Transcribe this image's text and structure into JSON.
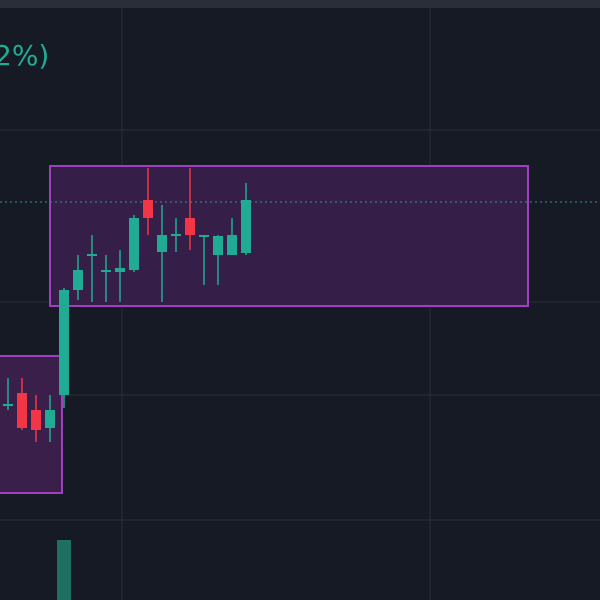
{
  "chart_data": {
    "type": "candlestick",
    "title": "2%)",
    "categories": [
      null,
      null,
      null,
      null,
      null,
      null,
      null,
      null,
      null,
      null,
      null,
      null,
      null,
      null,
      null,
      null,
      null,
      null
    ],
    "open": [
      194,
      207,
      190,
      172,
      205,
      310,
      344,
      328,
      328,
      330,
      400,
      348,
      364,
      382,
      363,
      345,
      345,
      347
    ],
    "high": [
      222,
      222,
      205,
      205,
      312,
      345,
      365,
      345,
      350,
      385,
      432,
      395,
      382,
      432,
      365,
      365,
      382,
      417
    ],
    "low": [
      190,
      170,
      158,
      158,
      192,
      300,
      298,
      298,
      298,
      328,
      365,
      298,
      348,
      350,
      315,
      315,
      345,
      345
    ],
    "close": [
      196,
      172,
      170,
      190,
      310,
      330,
      346,
      330,
      332,
      382,
      382,
      365,
      366,
      365,
      365,
      364,
      365,
      400
    ],
    "ylim": [
      0,
      600
    ],
    "up_color": "#22ab94",
    "down_color": "#f23645",
    "volume": [
      null,
      null,
      null,
      null,
      60,
      null,
      null,
      null,
      null,
      null,
      null,
      null,
      null,
      null,
      null,
      null,
      null,
      null
    ],
    "volume_lim": [
      0,
      100
    ],
    "volume_color": "#1f6f62"
  }
}
